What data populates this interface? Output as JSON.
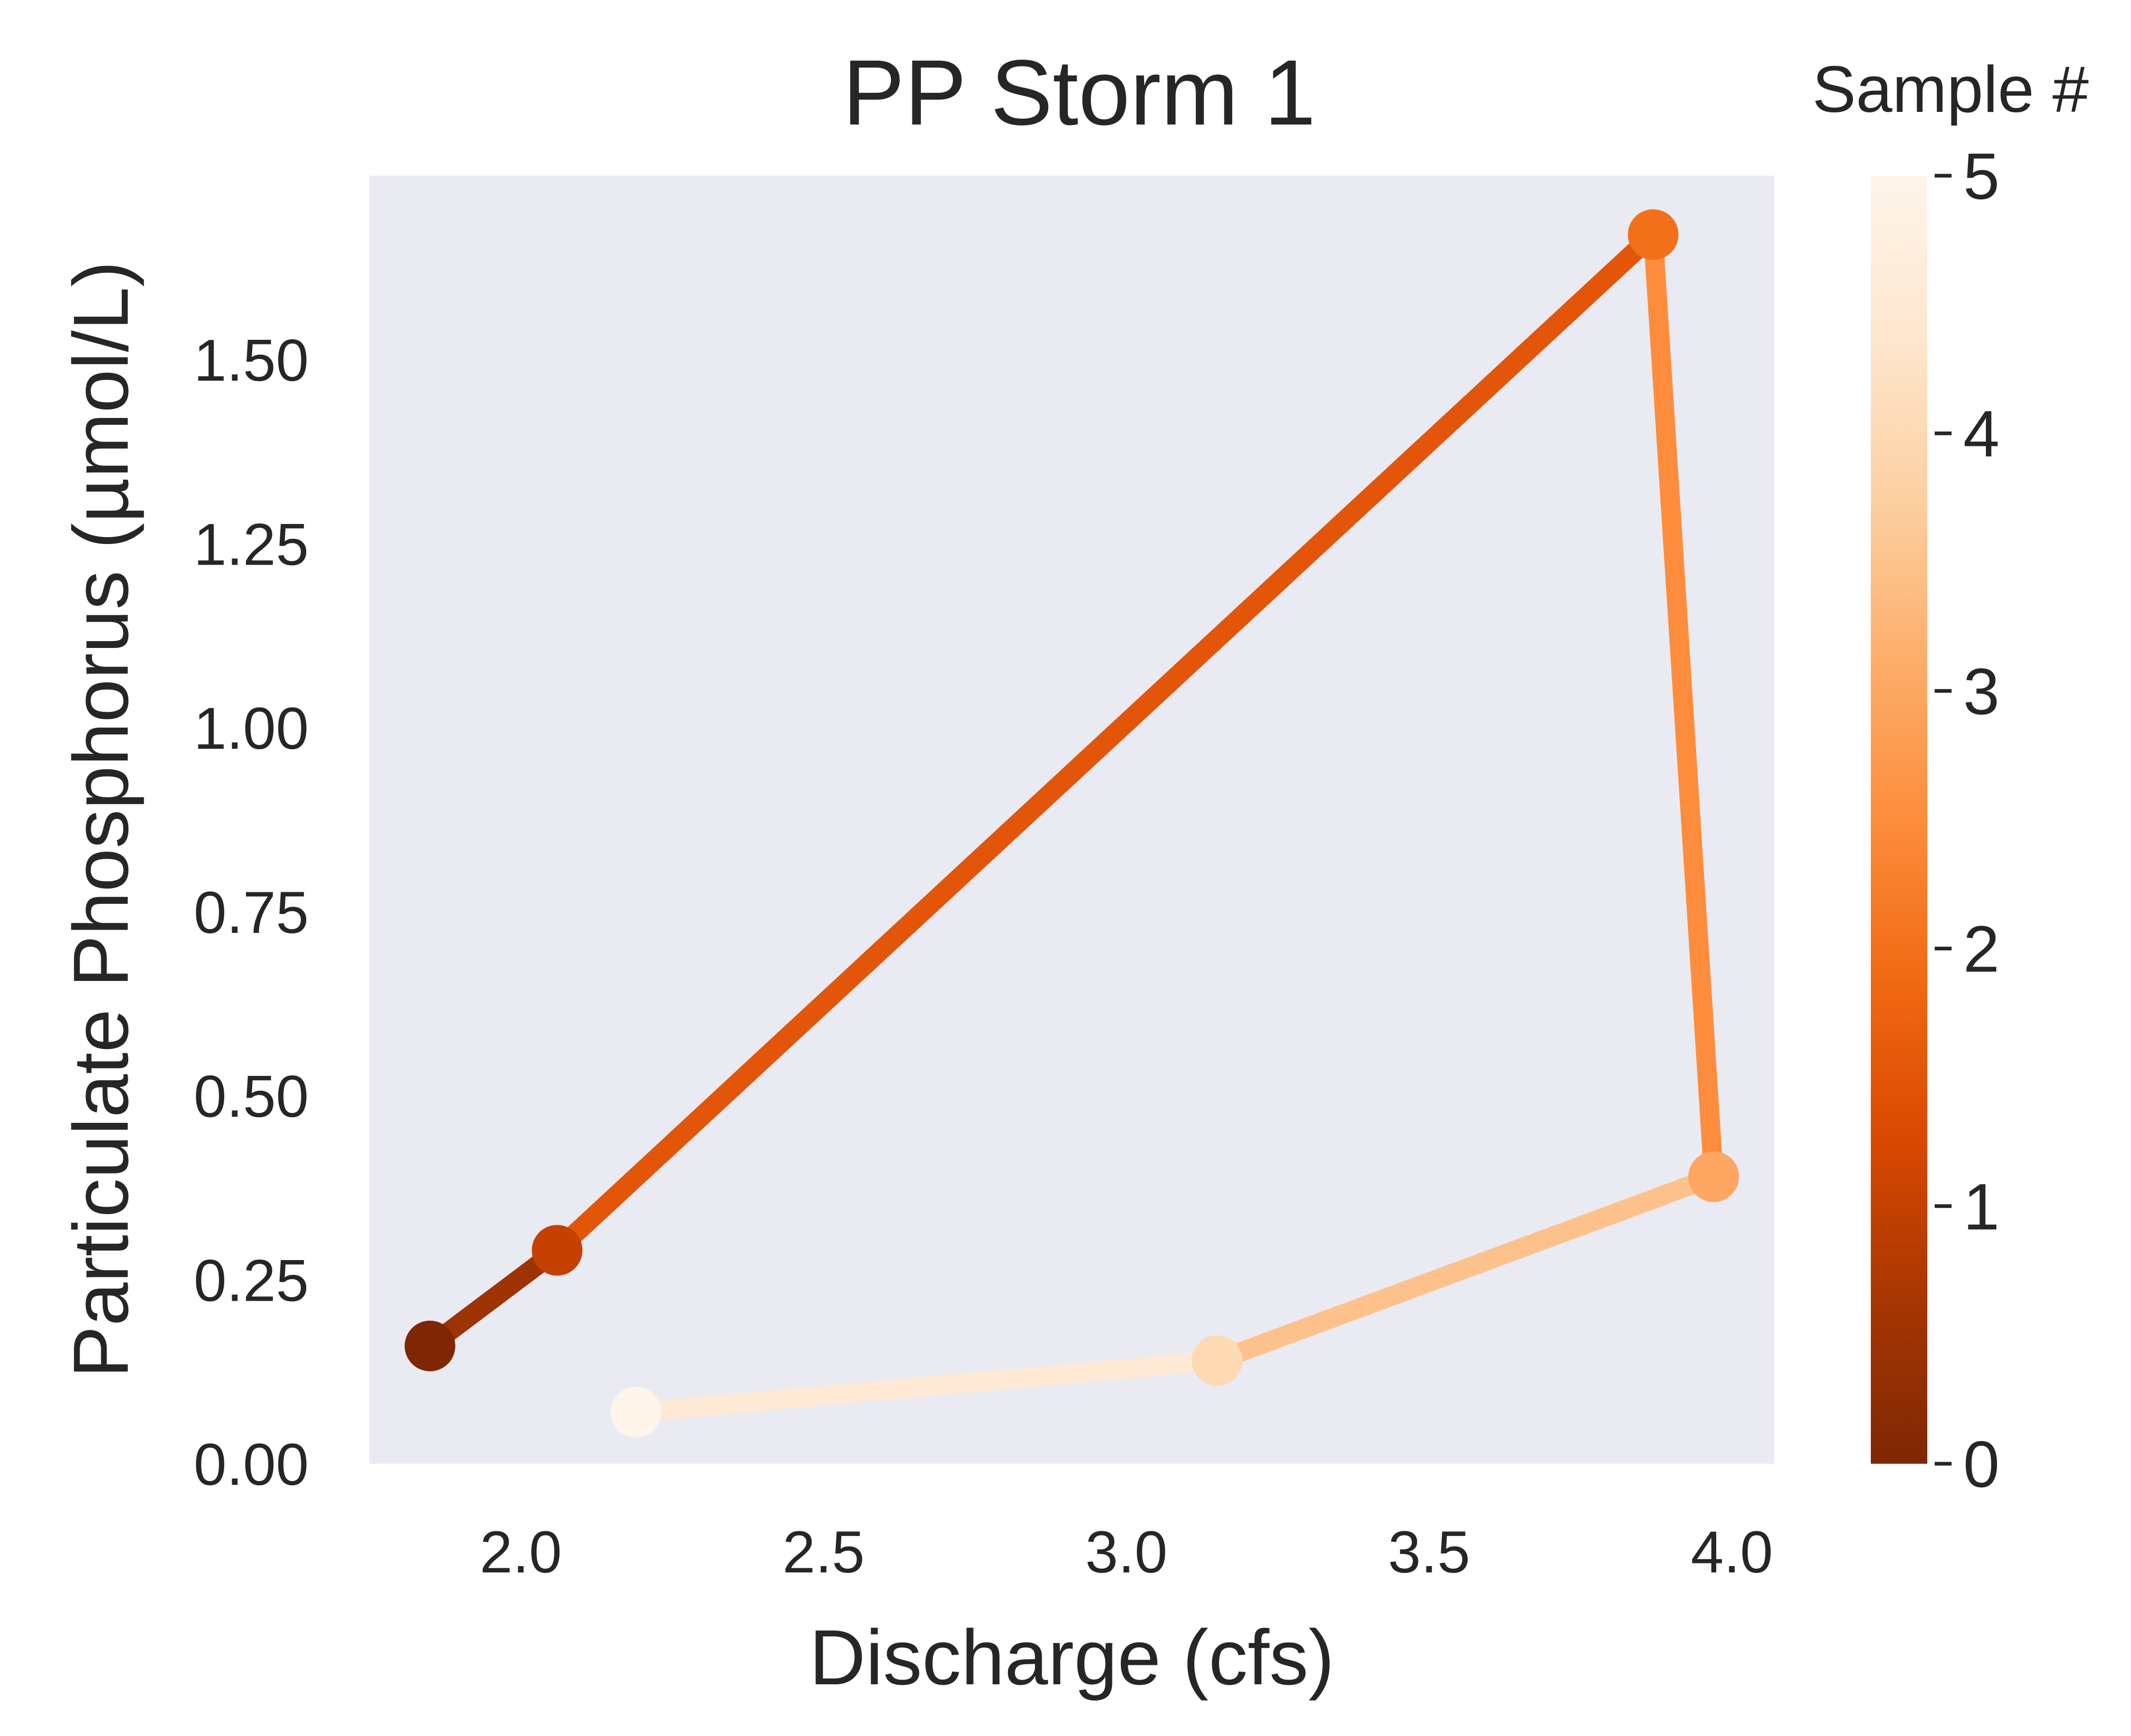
{
  "chart_data": {
    "type": "line",
    "title": "PP Storm 1",
    "xlabel": "Discharge (cfs)",
    "ylabel": "Particulate Phosphorus (µmol/L)",
    "xlim": [
      1.75,
      4.07
    ],
    "ylim": [
      0.0,
      1.75
    ],
    "x_ticks": [
      "2.0",
      "2.5",
      "3.0",
      "3.5",
      "4.0"
    ],
    "y_ticks": [
      "0.00",
      "0.25",
      "0.50",
      "0.75",
      "1.00",
      "1.25",
      "1.50"
    ],
    "grid": false,
    "background": "#eaeaf2",
    "colormap": "Oranges_r",
    "series": [
      {
        "points": [
          {
            "x": 1.85,
            "y": 0.16,
            "sample": 0
          },
          {
            "x": 2.06,
            "y": 0.29,
            "sample": 1
          },
          {
            "x": 3.87,
            "y": 1.67,
            "sample": 2
          },
          {
            "x": 3.97,
            "y": 0.39,
            "sample": 3
          },
          {
            "x": 3.15,
            "y": 0.14,
            "sample": 4
          },
          {
            "x": 2.19,
            "y": 0.07,
            "sample": 5
          }
        ]
      }
    ],
    "colorbar": {
      "title": "Sample #",
      "range": [
        0,
        5
      ],
      "ticks": [
        "0",
        "1",
        "2",
        "3",
        "4",
        "5"
      ],
      "colors": [
        "#7f2704",
        "#a63603",
        "#d94801",
        "#f16913",
        "#fd8d3c",
        "#fdae6b",
        "#fdd0a2",
        "#fee6ce",
        "#fff5eb"
      ]
    }
  }
}
